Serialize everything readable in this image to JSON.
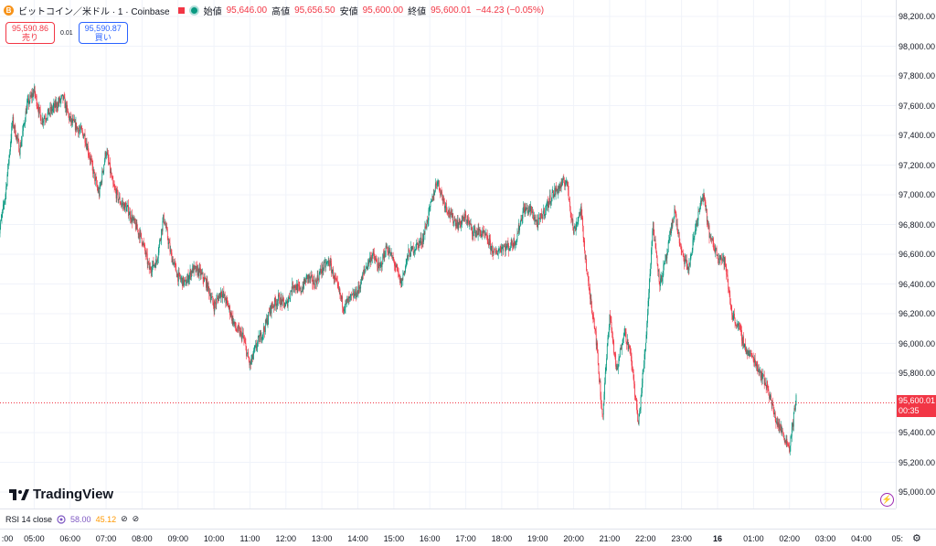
{
  "legend": {
    "coin_letter": "B",
    "symbol": "ビットコイン／米ドル · 1 · Coinbase",
    "open_label": "始値",
    "open_value": "95,646.00",
    "high_label": "高値",
    "high_value": "95,656.50",
    "low_label": "安値",
    "low_value": "95,600.00",
    "close_label": "終値",
    "close_value": "95,600.01",
    "change": "−44.23 (−0.05%)"
  },
  "trade": {
    "sell_price": "95,590.86",
    "sell_label": "売り",
    "spread": "0.01",
    "buy_price": "95,590.87",
    "buy_label": "買い"
  },
  "price_axis": {
    "ticks": [
      "98,200.00",
      "98,000.00",
      "97,800.00",
      "97,600.00",
      "97,400.00",
      "97,200.00",
      "97,000.00",
      "96,800.00",
      "96,600.00",
      "96,400.00",
      "96,200.00",
      "96,000.00",
      "95,800.00",
      "95,400.00",
      "95,200.00",
      "95,000.00"
    ],
    "current_price": "95,600.01",
    "countdown": "00:35"
  },
  "time_axis": {
    "ticks": [
      ":00",
      "05:00",
      "06:00",
      "07:00",
      "08:00",
      "09:00",
      "10:00",
      "11:00",
      "12:00",
      "13:00",
      "14:00",
      "15:00",
      "16:00",
      "17:00",
      "18:00",
      "19:00",
      "20:00",
      "21:00",
      "22:00",
      "23:00",
      "16",
      "01:00",
      "02:00",
      "03:00",
      "04:00",
      "05:"
    ]
  },
  "rsi": {
    "label": "RSI 14 close",
    "value1": "58.00",
    "value2": "45.12"
  },
  "logo": {
    "text": "TradingView"
  },
  "icons": {
    "settings": "gear-icon",
    "flash": "lightning-icon",
    "visibility": "eye-off-icon"
  },
  "colors": {
    "up": "#089981",
    "down": "#f23645",
    "rsi": "#7e57c2",
    "rsi2": "#ff9800"
  },
  "chart_data": {
    "type": "candlestick",
    "instrument": "ビットコイン／米ドル",
    "interval": "1",
    "ylim": [
      95000,
      98300
    ],
    "x_ticks": [
      ":00",
      "05:00",
      "06:00",
      "07:00",
      "08:00",
      "09:00",
      "10:00",
      "11:00",
      "12:00",
      "13:00",
      "14:00",
      "15:00",
      "16:00",
      "17:00",
      "18:00",
      "19:00",
      "20:00",
      "21:00",
      "22:00",
      "23:00",
      "16",
      "01:00",
      "02:00",
      "03:00",
      "04:00",
      "05:"
    ],
    "price_path": [
      [
        0,
        96700
      ],
      [
        0.2,
        97000
      ],
      [
        0.4,
        97500
      ],
      [
        0.6,
        97300
      ],
      [
        0.8,
        97600
      ],
      [
        1.0,
        97700
      ],
      [
        1.2,
        97500
      ],
      [
        1.4,
        97550
      ],
      [
        1.6,
        97600
      ],
      [
        1.8,
        97650
      ],
      [
        2.0,
        97500
      ],
      [
        2.2,
        97450
      ],
      [
        2.4,
        97400
      ],
      [
        2.6,
        97200
      ],
      [
        2.8,
        97000
      ],
      [
        3.0,
        97300
      ],
      [
        3.2,
        97050
      ],
      [
        3.4,
        96950
      ],
      [
        3.6,
        96900
      ],
      [
        3.8,
        96800
      ],
      [
        4.0,
        96700
      ],
      [
        4.2,
        96500
      ],
      [
        4.4,
        96550
      ],
      [
        4.6,
        96850
      ],
      [
        4.8,
        96600
      ],
      [
        5.0,
        96450
      ],
      [
        5.2,
        96400
      ],
      [
        5.4,
        96500
      ],
      [
        5.6,
        96480
      ],
      [
        5.8,
        96400
      ],
      [
        6.0,
        96250
      ],
      [
        6.2,
        96350
      ],
      [
        6.4,
        96250
      ],
      [
        6.6,
        96100
      ],
      [
        6.8,
        96050
      ],
      [
        7.0,
        95850
      ],
      [
        7.2,
        96000
      ],
      [
        7.4,
        96100
      ],
      [
        7.6,
        96250
      ],
      [
        7.8,
        96300
      ],
      [
        8.0,
        96250
      ],
      [
        8.2,
        96400
      ],
      [
        8.4,
        96350
      ],
      [
        8.6,
        96450
      ],
      [
        8.8,
        96400
      ],
      [
        9.0,
        96500
      ],
      [
        9.2,
        96550
      ],
      [
        9.4,
        96400
      ],
      [
        9.6,
        96250
      ],
      [
        9.8,
        96300
      ],
      [
        10.0,
        96350
      ],
      [
        10.2,
        96500
      ],
      [
        10.4,
        96600
      ],
      [
        10.6,
        96500
      ],
      [
        10.8,
        96650
      ],
      [
        11.0,
        96550
      ],
      [
        11.2,
        96400
      ],
      [
        11.4,
        96600
      ],
      [
        11.6,
        96650
      ],
      [
        11.8,
        96700
      ],
      [
        12.0,
        96900
      ],
      [
        12.2,
        97100
      ],
      [
        12.4,
        96950
      ],
      [
        12.6,
        96850
      ],
      [
        12.8,
        96800
      ],
      [
        13.0,
        96850
      ],
      [
        13.2,
        96750
      ],
      [
        13.4,
        96750
      ],
      [
        13.6,
        96700
      ],
      [
        13.8,
        96600
      ],
      [
        14.0,
        96650
      ],
      [
        14.2,
        96650
      ],
      [
        14.4,
        96700
      ],
      [
        14.6,
        96900
      ],
      [
        14.8,
        96900
      ],
      [
        15.0,
        96800
      ],
      [
        15.2,
        96900
      ],
      [
        15.4,
        97000
      ],
      [
        15.6,
        97050
      ],
      [
        15.8,
        97100
      ],
      [
        16.0,
        96750
      ],
      [
        16.2,
        96900
      ],
      [
        16.4,
        96400
      ],
      [
        16.6,
        96100
      ],
      [
        16.8,
        95500
      ],
      [
        17.0,
        96200
      ],
      [
        17.2,
        95800
      ],
      [
        17.4,
        96100
      ],
      [
        17.6,
        95900
      ],
      [
        17.8,
        95450
      ],
      [
        18.0,
        96000
      ],
      [
        18.2,
        96800
      ],
      [
        18.4,
        96400
      ],
      [
        18.6,
        96600
      ],
      [
        18.8,
        96900
      ],
      [
        19.0,
        96600
      ],
      [
        19.2,
        96500
      ],
      [
        19.4,
        96800
      ],
      [
        19.6,
        97000
      ],
      [
        19.8,
        96700
      ],
      [
        20.0,
        96600
      ],
      [
        20.2,
        96550
      ],
      [
        20.4,
        96200
      ],
      [
        20.6,
        96100
      ],
      [
        20.8,
        95950
      ],
      [
        21.0,
        95900
      ],
      [
        21.2,
        95800
      ],
      [
        21.4,
        95700
      ],
      [
        21.6,
        95500
      ],
      [
        21.8,
        95400
      ],
      [
        22.0,
        95300
      ],
      [
        22.2,
        95650
      ]
    ]
  }
}
